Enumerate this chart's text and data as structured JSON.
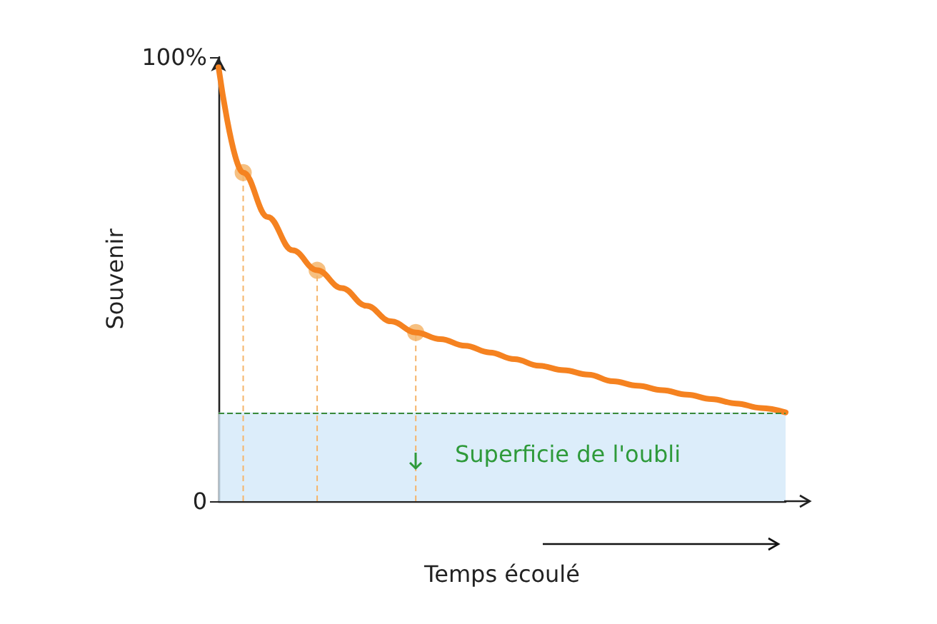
{
  "chart_data": {
    "type": "line",
    "xlabel": "Temps écoulé",
    "ylabel": "Souvenir",
    "categories": [
      null,
      null,
      null,
      null,
      null,
      null,
      null,
      null,
      null,
      null,
      null,
      null,
      null,
      null,
      null,
      null,
      null,
      null,
      null,
      null,
      null,
      null,
      null,
      null
    ],
    "series": [
      {
        "color": "#f58220",
        "marker": "none",
        "values": [
          97.7,
          74,
          64,
          56.5,
          52,
          48,
          44,
          40.5,
          38,
          36.5,
          35,
          33.5,
          32,
          30.5,
          29.5,
          28.5,
          27,
          26,
          25,
          24,
          23,
          22,
          21,
          20
        ]
      },
      {
        "type": "lollipop",
        "color": "#f5b56b",
        "marker": "circle",
        "line_style": "dashed",
        "values": [
          null,
          74,
          null,
          null,
          52,
          null,
          null,
          null,
          38,
          null,
          null,
          null,
          null,
          null,
          null,
          null,
          null,
          null,
          null,
          null,
          null,
          null,
          null,
          null
        ]
      }
    ],
    "ylim": [
      0,
      100
    ],
    "yticks": [
      {
        "value": 0,
        "label": "0"
      },
      {
        "value": 100,
        "label": "100%"
      }
    ],
    "tick_labels": "y",
    "grid": false,
    "ref_lines": [
      {
        "axis": "y",
        "value": 20,
        "color": "#3a8a3a",
        "line_style": "dashed"
      }
    ],
    "bands": [
      {
        "axis": "y",
        "from": 0,
        "to": 20,
        "label": "Superficie de l'oubli",
        "color": "#d3e8f9"
      }
    ]
  }
}
